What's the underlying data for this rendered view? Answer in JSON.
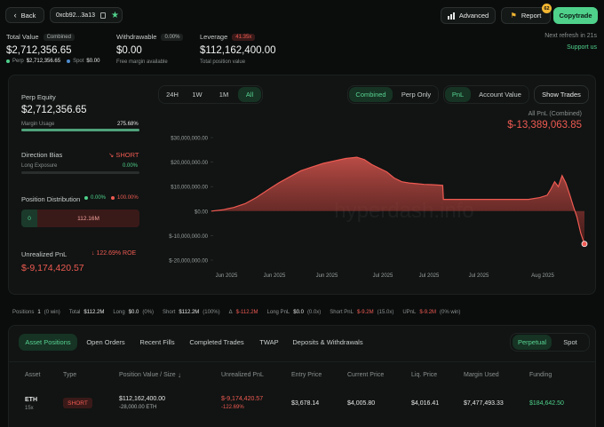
{
  "header": {
    "back_label": "Back",
    "address": "0xcb92...3a13",
    "advanced_label": "Advanced",
    "report_label": "Report",
    "report_badge": "62",
    "copytrade_label": "Copytrade",
    "refresh_text": "Next refresh in 21s",
    "support_label": "Support us"
  },
  "summary": {
    "total_value_label": "Total Value",
    "combined_badge": "Combined",
    "total_value": "$2,712,356.65",
    "perp_label": "Perp",
    "perp_value": "$2,712,356.65",
    "spot_label": "Spot",
    "spot_value": "$0.00",
    "withdrawable_label": "Withdrawable",
    "withdrawable_pct": "0.00%",
    "withdrawable_value": "$0.00",
    "withdrawable_sub": "Free margin available",
    "leverage_label": "Leverage",
    "leverage_badge": "41.35x",
    "leverage_value": "$112,162,400.00",
    "leverage_sub": "Total position value"
  },
  "left": {
    "perp_equity_label": "Perp Equity",
    "perp_equity": "$2,712,356.65",
    "margin_usage_label": "Margin Usage",
    "margin_usage_value": "275.68%",
    "margin_usage_fraction": 1.0,
    "direction_bias_label": "Direction Bias",
    "direction_bias_value": "SHORT",
    "long_exposure_label": "Long Exposure",
    "long_exposure_value": "0.00%",
    "position_distribution_label": "Position Distribution",
    "dist_long_pct": "0.00%",
    "dist_short_pct": "100.00%",
    "dist_long_value": "0",
    "dist_short_value": "112.16M",
    "unrealized_label": "Unrealized PnL",
    "unrealized_roe": "122.69% ROE",
    "unrealized_value": "$-9,174,420.57"
  },
  "chart_controls": {
    "ranges": [
      "24H",
      "1W",
      "1M",
      "All"
    ],
    "active_range": "All",
    "modes": [
      "Combined",
      "Perp Only"
    ],
    "active_mode": "Combined",
    "metrics": [
      "PnL",
      "Account Value"
    ],
    "active_metric": "PnL",
    "show_trades_label": "Show Trades",
    "pnl_title": "All PnL (Combined)",
    "pnl_value": "$-13,389,063.85",
    "watermark": "hyperdash.info"
  },
  "chart_data": {
    "type": "area",
    "yticks": [
      "$30,000,000.00",
      "$20,000,000.00",
      "$10,000,000.00",
      "$0.00",
      "$-10,000,000.00",
      "$-20,000,000.00"
    ],
    "ytick_values": [
      30000000,
      20000000,
      10000000,
      0,
      -10000000,
      -20000000
    ],
    "xticks": [
      "Jun 2025",
      "Jun 2025",
      "Jun 2025",
      "Jul 2025",
      "Jul 2025",
      "Jul 2025",
      "Aug 2025"
    ],
    "ylim": [
      -20000000,
      30000000
    ],
    "x": [
      0,
      3,
      6,
      9,
      12,
      15,
      18,
      21,
      24,
      27,
      30,
      33,
      36,
      39,
      41,
      43,
      45,
      47,
      49,
      51,
      53,
      55,
      57,
      59,
      61,
      62,
      62.2,
      65,
      70,
      75,
      80,
      85,
      88,
      90,
      91,
      92,
      93,
      94,
      95,
      96,
      97,
      98,
      99,
      100
    ],
    "values": [
      0,
      500000,
      1500000,
      3000000,
      5500000,
      8500000,
      11500000,
      14000000,
      16500000,
      18000000,
      19500000,
      20500000,
      21500000,
      22000000,
      21000000,
      19000000,
      17500000,
      16000000,
      13500000,
      12000000,
      11500000,
      11200000,
      10900000,
      10800000,
      10600000,
      10500000,
      4800000,
      4800000,
      4800000,
      4800000,
      4800000,
      4800000,
      5500000,
      6500000,
      9000000,
      12000000,
      10000000,
      14500000,
      11500000,
      7000000,
      2000000,
      -2500000,
      -9000000,
      -13389063
    ]
  },
  "stats": {
    "positions_label": "Positions",
    "positions_value": "1",
    "positions_win": "(0 win)",
    "total_label": "Total",
    "total_value": "$112.2M",
    "long_label": "Long",
    "long_value": "$0.0",
    "long_pct": "(0%)",
    "short_label": "Short",
    "short_value": "$112.2M",
    "short_pct": "(100%)",
    "delta_value": "$-112.2M",
    "long_pnl_label": "Long PnL",
    "long_pnl_value": "$0.0",
    "long_pnl_x": "(0.0x)",
    "short_pnl_label": "Short PnL",
    "short_pnl_value": "$-9.2M",
    "short_pnl_x": "(15.0x)",
    "upnl_label": "UPnL",
    "upnl_value": "$-9.2M",
    "upnl_win": "(0% win)"
  },
  "tabs": {
    "items": [
      "Asset Positions",
      "Open Orders",
      "Recent Fills",
      "Completed Trades",
      "TWAP",
      "Deposits & Withdrawals"
    ],
    "active": "Asset Positions",
    "market_items": [
      "Perpetual",
      "Spot"
    ],
    "market_active": "Perpetual"
  },
  "table": {
    "headers": [
      "Asset",
      "Type",
      "Position Value / Size",
      "Unrealized PnL",
      "Entry Price",
      "Current Price",
      "Liq. Price",
      "Margin Used",
      "Funding"
    ],
    "row": {
      "asset": "ETH",
      "leverage": "15x",
      "type": "SHORT",
      "position_value": "$112,162,400.00",
      "position_size": "-28,000.00 ETH",
      "upnl": "$-9,174,420.57",
      "upnl_pct": "-122.69%",
      "entry": "$3,678.14",
      "current": "$4,005.80",
      "liq": "$4,016.41",
      "margin": "$7,477,493.33",
      "funding": "$184,642.50"
    }
  },
  "colors": {
    "accent": "#4fd18b",
    "negative": "#ef5a52",
    "background": "#0b0d0d"
  }
}
